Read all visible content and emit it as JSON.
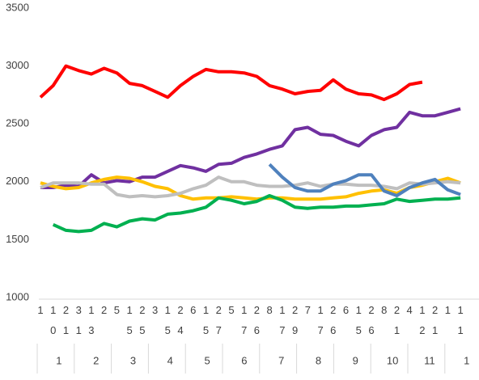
{
  "chart_data": {
    "type": "line",
    "categories": [
      "1",
      "10",
      "21",
      "31",
      "13",
      "2",
      "5",
      "15",
      "25",
      "3",
      "15",
      "24",
      "6",
      "15",
      "27",
      "5",
      "17",
      "26",
      "8",
      "17",
      "29",
      "7",
      "17",
      "26",
      "6",
      "15",
      "26",
      "8",
      "21",
      "4",
      "12",
      "21",
      "1",
      "11"
    ],
    "groups": [
      "1",
      "2",
      "3",
      "4",
      "5",
      "6",
      "7",
      "8",
      "9",
      "10",
      "11",
      "1"
    ],
    "ylim": [
      1000,
      3500
    ],
    "yticks": [
      1000,
      1500,
      2000,
      2500,
      3000,
      3500
    ],
    "series": [
      {
        "color": "#ff0000",
        "values": [
          2730,
          2830,
          3000,
          2960,
          2930,
          2980,
          2940,
          2850,
          2830,
          2780,
          2730,
          2830,
          2910,
          2970,
          2950,
          2950,
          2940,
          2910,
          2830,
          2800,
          2760,
          2780,
          2790,
          2880,
          2800,
          2760,
          2750,
          2710,
          2760,
          2840,
          2860,
          null,
          null,
          null
        ]
      },
      {
        "color": "#7030a0",
        "values": [
          1950,
          1950,
          1970,
          1960,
          2060,
          1990,
          2010,
          2000,
          2040,
          2040,
          2090,
          2140,
          2120,
          2090,
          2150,
          2160,
          2210,
          2240,
          2280,
          2310,
          2450,
          2470,
          2410,
          2400,
          2350,
          2310,
          2400,
          2450,
          2470,
          2600,
          2570,
          2570,
          2600,
          2630
        ]
      },
      {
        "color": "#ffc000",
        "values": [
          1990,
          1960,
          1940,
          1950,
          1990,
          2020,
          2040,
          2030,
          2000,
          1960,
          1940,
          1880,
          1850,
          1860,
          1860,
          1870,
          1860,
          1850,
          1860,
          1860,
          1850,
          1850,
          1850,
          1860,
          1870,
          1900,
          1920,
          1930,
          1900,
          1950,
          1970,
          2000,
          2030,
          1990
        ]
      },
      {
        "color": "#bfbfbf",
        "values": [
          1950,
          1990,
          1990,
          1990,
          1980,
          1980,
          1890,
          1870,
          1880,
          1870,
          1880,
          1900,
          1940,
          1970,
          2040,
          2000,
          2000,
          1970,
          1960,
          1960,
          1970,
          1990,
          1960,
          1980,
          1980,
          1970,
          1970,
          1960,
          1940,
          1990,
          1980,
          1990,
          2000,
          1990
        ]
      },
      {
        "color": "#00b050",
        "values": [
          null,
          1630,
          1580,
          1570,
          1580,
          1640,
          1610,
          1660,
          1680,
          1670,
          1720,
          1730,
          1750,
          1780,
          1860,
          1840,
          1810,
          1830,
          1880,
          1840,
          1780,
          1770,
          1780,
          1780,
          1790,
          1790,
          1800,
          1810,
          1850,
          1830,
          1840,
          1850,
          1850,
          1860
        ]
      },
      {
        "color": "#4f81bd",
        "values": [
          null,
          null,
          null,
          null,
          null,
          null,
          null,
          null,
          null,
          null,
          null,
          null,
          null,
          null,
          null,
          null,
          null,
          null,
          2150,
          2040,
          1950,
          1920,
          1920,
          1980,
          2010,
          2060,
          2060,
          1920,
          1880,
          1950,
          1990,
          2020,
          1930,
          1890
        ]
      }
    ]
  }
}
